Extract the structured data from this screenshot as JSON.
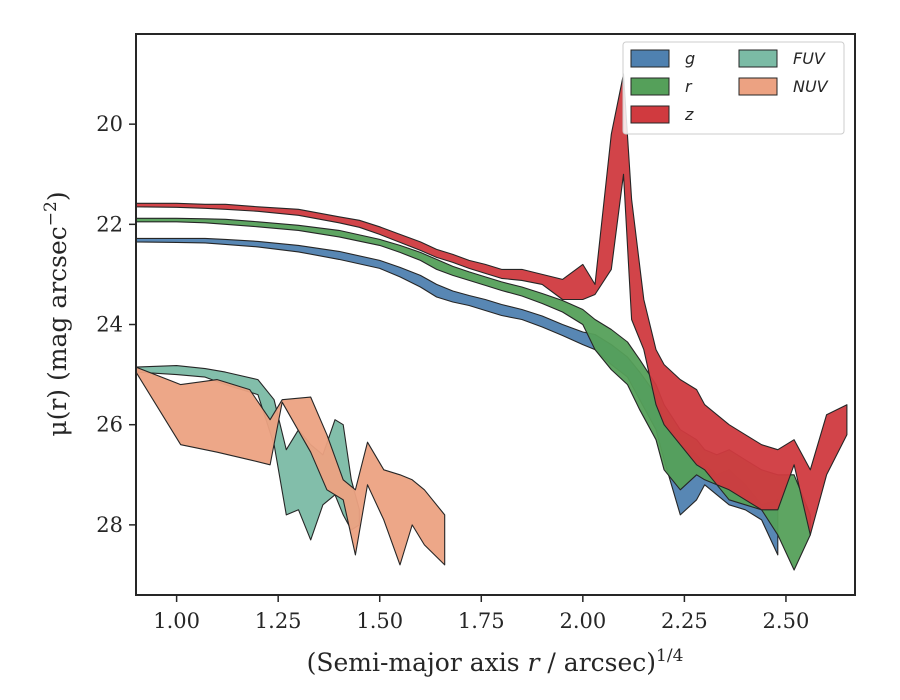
{
  "chart_data": {
    "type": "area",
    "xlabel": "(Semi-major axis",
    "xlabel_var": "r",
    "xlabel_rest": "/ arcsec)",
    "xlabel_power": "1/4",
    "ylabel": "μ(r) (mag arcsec",
    "ylabel_power": "−2",
    "ylabel_end": ")",
    "xlim": [
      0.9,
      2.67
    ],
    "ylim": [
      29.4,
      18.2
    ],
    "y_inverted": true,
    "xticks": [
      1.0,
      1.25,
      1.5,
      1.75,
      2.0,
      2.25,
      2.5
    ],
    "xtick_labels": [
      "1.00",
      "1.25",
      "1.50",
      "1.75",
      "2.00",
      "2.25",
      "2.50"
    ],
    "yticks": [
      20,
      22,
      24,
      26,
      28
    ],
    "ytick_labels": [
      "20",
      "22",
      "24",
      "26",
      "28"
    ],
    "grid": false,
    "legend": {
      "placement": "top-right",
      "columns": 2
    },
    "series": [
      {
        "name": "g",
        "color": "#4f81b0",
        "x": [
          0.9,
          1.0,
          1.07,
          1.12,
          1.2,
          1.3,
          1.4,
          1.5,
          1.55,
          1.6,
          1.64,
          1.68,
          1.72,
          1.76,
          1.8,
          1.85,
          1.9,
          1.95,
          2.0,
          2.03,
          2.07,
          2.11,
          2.14,
          2.18,
          2.2,
          2.24,
          2.28,
          2.3,
          2.33,
          2.36,
          2.4,
          2.44,
          2.48
        ],
        "lower": [
          22.28,
          22.28,
          22.28,
          22.3,
          22.34,
          22.42,
          22.54,
          22.72,
          22.86,
          23.02,
          23.2,
          23.33,
          23.42,
          23.5,
          23.6,
          23.7,
          23.83,
          24.0,
          24.15,
          24.2,
          24.4,
          24.65,
          24.95,
          25.4,
          25.9,
          26.4,
          26.6,
          26.8,
          27.0,
          26.9,
          27.2,
          27.6,
          27.5
        ],
        "upper": [
          22.35,
          22.36,
          22.37,
          22.4,
          22.45,
          22.55,
          22.7,
          22.88,
          23.05,
          23.25,
          23.45,
          23.55,
          23.62,
          23.72,
          23.82,
          23.9,
          24.05,
          24.22,
          24.4,
          24.5,
          24.8,
          25.05,
          25.5,
          26.1,
          26.7,
          27.8,
          27.5,
          27.2,
          27.4,
          27.6,
          27.7,
          27.9,
          28.6
        ]
      },
      {
        "name": "r",
        "color": "#55a05a",
        "x": [
          0.9,
          1.0,
          1.07,
          1.12,
          1.2,
          1.3,
          1.4,
          1.5,
          1.55,
          1.6,
          1.64,
          1.68,
          1.72,
          1.76,
          1.8,
          1.85,
          1.9,
          1.95,
          2.0,
          2.03,
          2.07,
          2.11,
          2.14,
          2.18,
          2.2,
          2.24,
          2.28,
          2.3,
          2.33,
          2.36,
          2.4,
          2.44,
          2.48,
          2.52,
          2.56
        ],
        "lower": [
          21.88,
          21.88,
          21.89,
          21.9,
          21.95,
          22.02,
          22.12,
          22.3,
          22.42,
          22.56,
          22.7,
          22.84,
          22.95,
          23.05,
          23.15,
          23.25,
          23.38,
          23.52,
          23.7,
          23.9,
          24.1,
          24.35,
          24.7,
          25.2,
          25.6,
          26.1,
          26.3,
          26.5,
          26.6,
          26.5,
          26.7,
          26.9,
          27.0,
          27.0,
          27.8
        ],
        "upper": [
          21.95,
          21.95,
          21.97,
          22.0,
          22.05,
          22.12,
          22.25,
          22.42,
          22.56,
          22.72,
          22.9,
          23.02,
          23.12,
          23.22,
          23.32,
          23.43,
          23.58,
          23.75,
          24.0,
          24.5,
          24.9,
          25.2,
          25.7,
          26.3,
          26.9,
          27.3,
          27.0,
          27.1,
          27.2,
          27.5,
          27.6,
          27.7,
          28.2,
          28.9,
          28.2
        ]
      },
      {
        "name": "z",
        "color": "#d03a3f",
        "x": [
          0.9,
          1.0,
          1.07,
          1.12,
          1.2,
          1.3,
          1.4,
          1.45,
          1.5,
          1.55,
          1.6,
          1.64,
          1.68,
          1.72,
          1.76,
          1.8,
          1.85,
          1.9,
          1.95,
          2.0,
          2.03,
          2.07,
          2.1,
          2.12,
          2.15,
          2.18,
          2.2,
          2.24,
          2.28,
          2.3,
          2.33,
          2.36,
          2.4,
          2.44,
          2.48,
          2.52,
          2.56,
          2.6,
          2.65
        ],
        "lower": [
          21.58,
          21.58,
          21.6,
          21.6,
          21.65,
          21.7,
          21.85,
          21.92,
          22.05,
          22.2,
          22.35,
          22.5,
          22.6,
          22.72,
          22.8,
          22.9,
          22.9,
          23.0,
          23.1,
          22.8,
          23.2,
          20.2,
          19.0,
          21.5,
          23.5,
          24.5,
          24.8,
          25.1,
          25.3,
          25.6,
          25.8,
          26.0,
          26.2,
          26.4,
          26.5,
          26.3,
          26.9,
          25.8,
          25.6
        ],
        "upper": [
          21.65,
          21.66,
          21.68,
          21.7,
          21.74,
          21.82,
          21.97,
          22.06,
          22.2,
          22.36,
          22.52,
          22.66,
          22.76,
          22.88,
          22.98,
          23.08,
          23.12,
          23.2,
          23.5,
          23.5,
          23.4,
          22.9,
          21.0,
          23.9,
          24.5,
          25.6,
          26.0,
          26.4,
          26.8,
          26.9,
          27.2,
          27.3,
          27.5,
          27.7,
          27.7,
          26.8,
          28.2,
          27.0,
          26.2
        ]
      },
      {
        "name": "FUV",
        "color": "#7bbba5",
        "x": [
          0.9,
          1.0,
          1.07,
          1.12,
          1.2,
          1.24,
          1.27,
          1.3,
          1.33,
          1.36,
          1.39,
          1.41,
          1.43,
          1.45
        ],
        "lower": [
          24.85,
          24.82,
          24.88,
          24.95,
          25.1,
          25.5,
          26.5,
          26.1,
          26.4,
          26.6,
          25.9,
          26.0,
          27.1,
          27.7
        ],
        "upper": [
          24.95,
          25.0,
          25.05,
          25.2,
          25.4,
          26.4,
          27.8,
          27.7,
          28.3,
          27.6,
          27.4,
          27.8,
          28.1,
          28.0
        ]
      },
      {
        "name": "NUV",
        "color": "#eca282",
        "x": [
          0.9,
          1.01,
          1.1,
          1.18,
          1.23,
          1.26,
          1.33,
          1.37,
          1.41,
          1.44,
          1.47,
          1.51,
          1.55,
          1.58,
          1.61,
          1.66
        ],
        "lower": [
          24.85,
          25.2,
          25.1,
          25.3,
          25.9,
          25.5,
          25.45,
          26.2,
          27.1,
          27.3,
          26.35,
          26.9,
          27.0,
          27.1,
          27.3,
          27.8
        ],
        "upper": [
          24.95,
          26.4,
          26.55,
          26.7,
          26.8,
          25.55,
          26.55,
          27.3,
          27.5,
          28.6,
          27.2,
          27.9,
          28.8,
          28.0,
          28.4,
          28.8
        ]
      }
    ]
  }
}
